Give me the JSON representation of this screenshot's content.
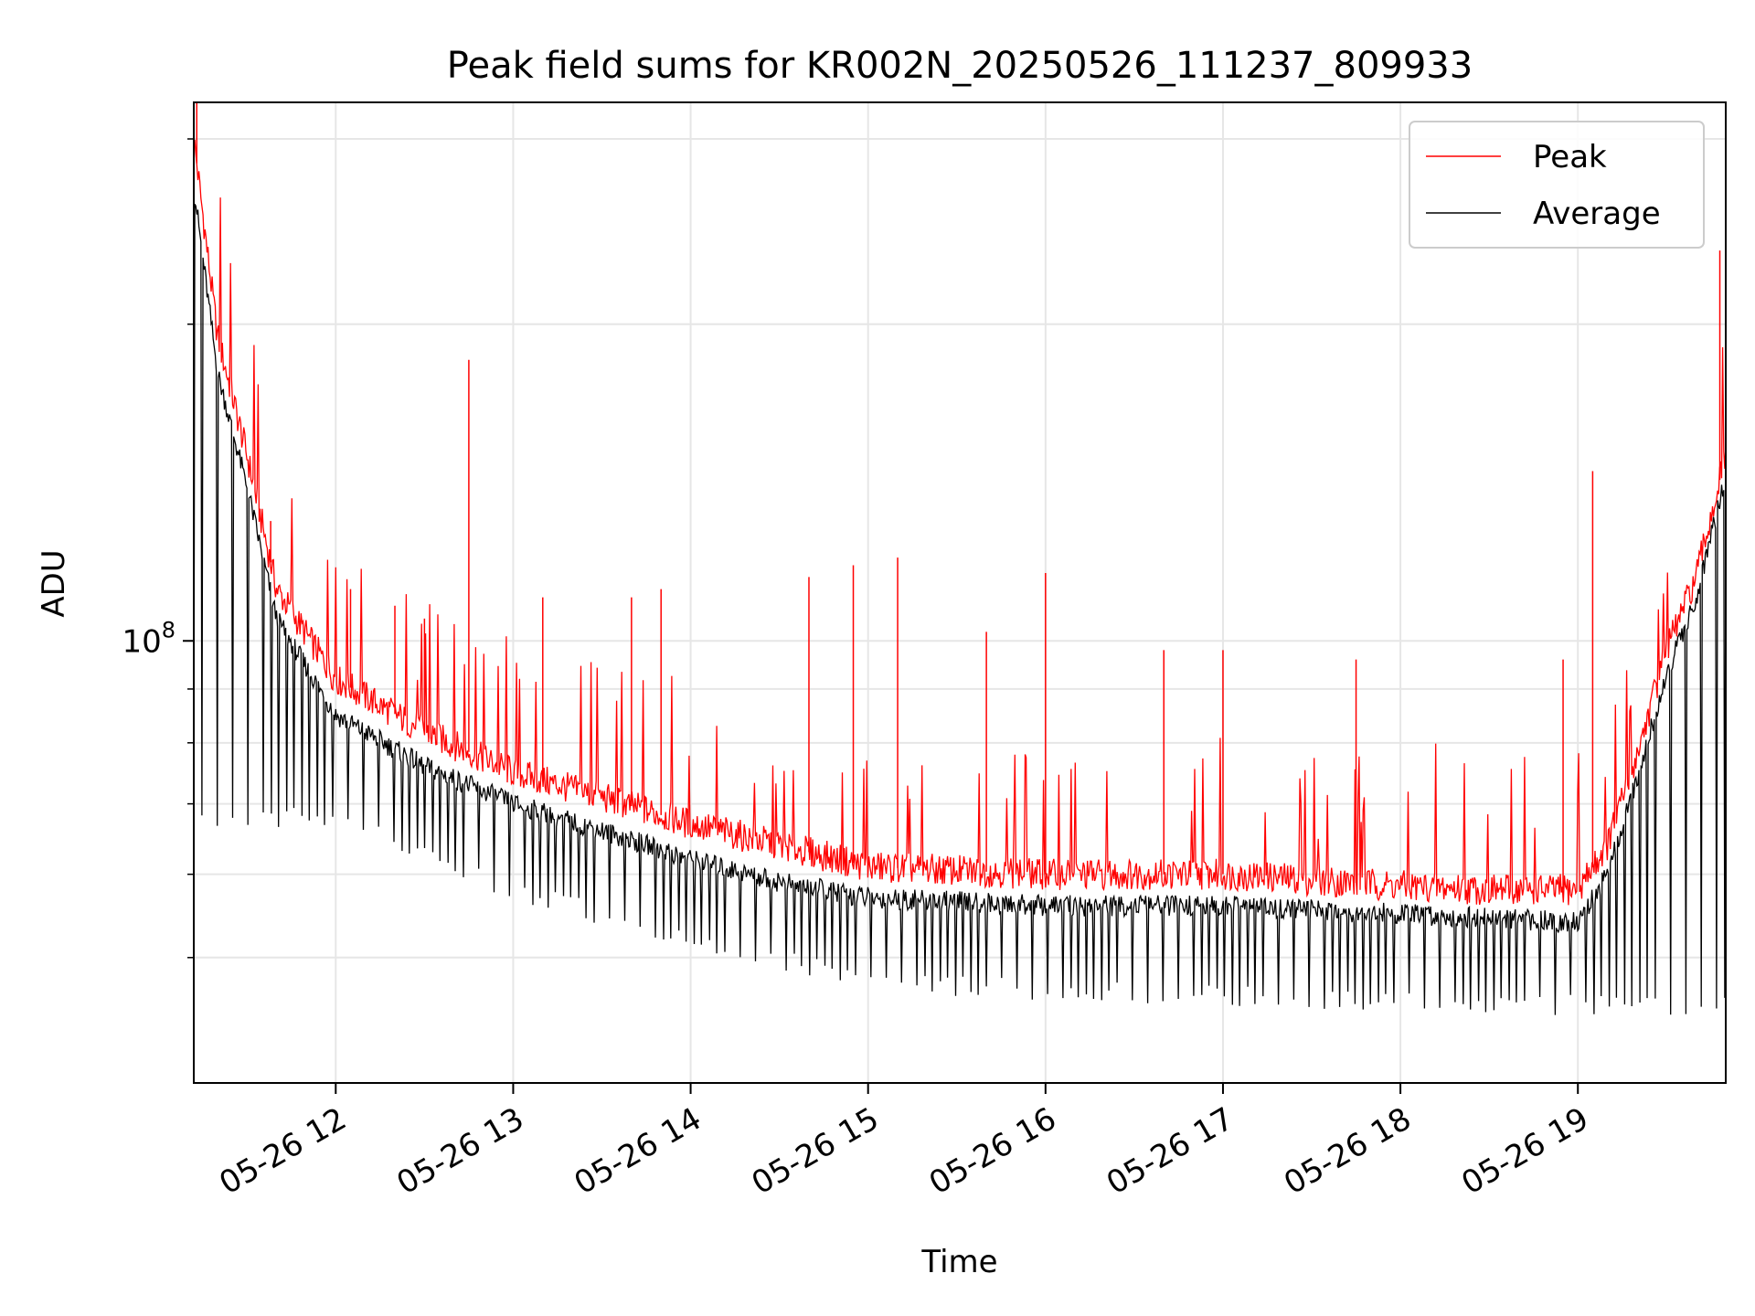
{
  "chart_data": {
    "type": "line",
    "title": "Peak field sums for KR002N_20250526_111237_809933",
    "xlabel": "Time",
    "ylabel": "ADU",
    "y_scale": "log",
    "grid": true,
    "legend_position": "upper right",
    "xlim": [
      "2025-05-26 11:12",
      "2025-05-26 19:50"
    ],
    "ylim": [
      38000000,
      325000000
    ],
    "x_ticks": [
      {
        "value": "2025-05-26 12:00",
        "label": "05-26 12"
      },
      {
        "value": "2025-05-26 13:00",
        "label": "05-26 13"
      },
      {
        "value": "2025-05-26 14:00",
        "label": "05-26 14"
      },
      {
        "value": "2025-05-26 15:00",
        "label": "05-26 15"
      },
      {
        "value": "2025-05-26 16:00",
        "label": "05-26 16"
      },
      {
        "value": "2025-05-26 17:00",
        "label": "05-26 17"
      },
      {
        "value": "2025-05-26 18:00",
        "label": "05-26 18"
      },
      {
        "value": "2025-05-26 19:00",
        "label": "05-26 19"
      }
    ],
    "y_major_tick": {
      "value": 100000000,
      "label_base": "10",
      "label_exp": "8"
    },
    "y_minor_ticks": [
      50000000,
      60000000,
      70000000,
      80000000,
      90000000,
      200000000,
      300000000
    ],
    "series": [
      {
        "name": "Peak",
        "color": "#ff0000",
        "points": [
          [
            "2025-05-26 11:12",
            300000000
          ],
          [
            "2025-05-26 11:20",
            195000000
          ],
          [
            "2025-05-26 11:30",
            150000000
          ],
          [
            "2025-05-26 11:40",
            112000000
          ],
          [
            "2025-05-26 12:00",
            92000000
          ],
          [
            "2025-05-26 12:30",
            82000000
          ],
          [
            "2025-05-26 13:00",
            75000000
          ],
          [
            "2025-05-26 13:30",
            71000000
          ],
          [
            "2025-05-26 14:00",
            67000000
          ],
          [
            "2025-05-26 14:30",
            64000000
          ],
          [
            "2025-05-26 15:00",
            61000000
          ],
          [
            "2025-05-26 16:00",
            60000000
          ],
          [
            "2025-05-26 17:00",
            60000000
          ],
          [
            "2025-05-26 18:00",
            58500000
          ],
          [
            "2025-05-26 18:30",
            58000000
          ],
          [
            "2025-05-26 19:00",
            58000000
          ],
          [
            "2025-05-26 19:10",
            64000000
          ],
          [
            "2025-05-26 19:20",
            78000000
          ],
          [
            "2025-05-26 19:30",
            98000000
          ],
          [
            "2025-05-26 19:40",
            115000000
          ],
          [
            "2025-05-26 19:50",
            150000000
          ]
        ],
        "spikes": [
          [
            "2025-05-26 11:13",
            325000000
          ],
          [
            "2025-05-26 11:38",
            130000000
          ],
          [
            "2025-05-26 12:05",
            112000000
          ],
          [
            "2025-05-26 12:20",
            108000000
          ],
          [
            "2025-05-26 12:30",
            105000000
          ],
          [
            "2025-05-26 12:45",
            185000000
          ],
          [
            "2025-05-26 13:10",
            110000000
          ],
          [
            "2025-05-26 13:40",
            110000000
          ],
          [
            "2025-05-26 13:50",
            112000000
          ],
          [
            "2025-05-26 14:40",
            115000000
          ],
          [
            "2025-05-26 14:55",
            118000000
          ],
          [
            "2025-05-26 15:10",
            120000000
          ],
          [
            "2025-05-26 15:40",
            102000000
          ],
          [
            "2025-05-26 16:00",
            116000000
          ],
          [
            "2025-05-26 16:40",
            98000000
          ],
          [
            "2025-05-26 17:00",
            98000000
          ],
          [
            "2025-05-26 17:45",
            96000000
          ],
          [
            "2025-05-26 18:55",
            96000000
          ],
          [
            "2025-05-26 19:05",
            145000000
          ],
          [
            "2025-05-26 19:48",
            235000000
          ]
        ]
      },
      {
        "name": "Average",
        "color": "#000000",
        "points": [
          [
            "2025-05-26 11:12",
            270000000
          ],
          [
            "2025-05-26 11:20",
            180000000
          ],
          [
            "2025-05-26 11:30",
            140000000
          ],
          [
            "2025-05-26 11:40",
            105000000
          ],
          [
            "2025-05-26 12:00",
            85000000
          ],
          [
            "2025-05-26 12:30",
            76000000
          ],
          [
            "2025-05-26 13:00",
            70000000
          ],
          [
            "2025-05-26 13:30",
            66000000
          ],
          [
            "2025-05-26 14:00",
            62000000
          ],
          [
            "2025-05-26 14:30",
            59000000
          ],
          [
            "2025-05-26 15:00",
            57000000
          ],
          [
            "2025-05-26 16:00",
            56000000
          ],
          [
            "2025-05-26 17:00",
            56000000
          ],
          [
            "2025-05-26 18:00",
            55000000
          ],
          [
            "2025-05-26 18:30",
            54500000
          ],
          [
            "2025-05-26 19:00",
            54000000
          ],
          [
            "2025-05-26 19:10",
            60000000
          ],
          [
            "2025-05-26 19:20",
            74000000
          ],
          [
            "2025-05-26 19:30",
            93000000
          ],
          [
            "2025-05-26 19:40",
            110000000
          ],
          [
            "2025-05-26 19:50",
            143000000
          ]
        ],
        "dips": [
          [
            "2025-05-26 12:00",
            68000000
          ],
          [
            "2025-05-26 13:00",
            58000000
          ],
          [
            "2025-05-26 14:00",
            52000000
          ],
          [
            "2025-05-26 15:00",
            47500000
          ],
          [
            "2025-05-26 16:00",
            46500000
          ],
          [
            "2025-05-26 17:00",
            46000000
          ],
          [
            "2025-05-26 18:00",
            45500000
          ],
          [
            "2025-05-26 19:00",
            45000000
          ]
        ]
      }
    ]
  }
}
